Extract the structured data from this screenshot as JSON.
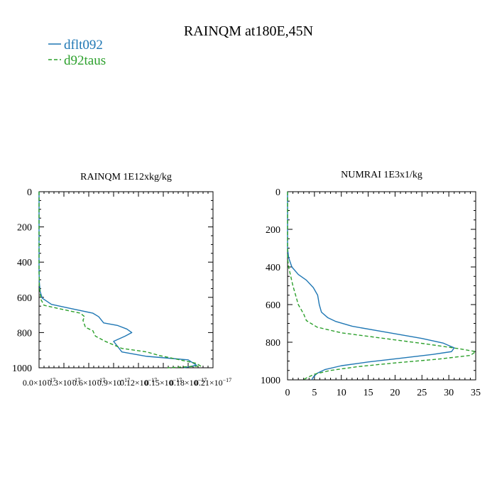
{
  "figure": {
    "title": "RAINQM at180E,45N"
  },
  "legend": [
    {
      "name": "dflt092",
      "color": "#1f77b4",
      "dash": "solid"
    },
    {
      "name": "d92taus",
      "color": "#2ca02c",
      "dash": "dashed"
    }
  ],
  "chart_data": [
    {
      "type": "line",
      "title": "RAINQM  1E12xkg/kg",
      "xlabel": "",
      "ylabel": "",
      "xlim": [
        0.0,
        2.1e-17
      ],
      "ylim": [
        1000,
        0
      ],
      "y_inverted": true,
      "grid": false,
      "legend_position": "top-left (figure)",
      "y_ticks": [
        0,
        200,
        400,
        600,
        800,
        1000
      ],
      "x_ticks": [
        0.0,
        3e-18,
        6e-18,
        9e-18,
        1.2e-17,
        1.5e-17,
        1.8e-17,
        2.1e-17
      ],
      "x_tick_labels": [
        "0.0×10",
        "0.3×10",
        "0.6×10",
        "0.9×10",
        "0.12×10",
        "0.15×10",
        "0.18×10",
        "0.21×10"
      ],
      "x_tick_exp": "−17",
      "series": [
        {
          "name": "dflt092",
          "color": "#1f77b4",
          "dash": "solid",
          "points": [
            [
              0.0,
              0
            ],
            [
              0.0,
              300
            ],
            [
              0.0,
              450
            ],
            [
              4e-20,
              520
            ],
            [
              1.5e-19,
              570
            ],
            [
              4e-19,
              605
            ],
            [
              1.5e-18,
              640
            ],
            [
              4e-18,
              665
            ],
            [
              6.5e-18,
              690
            ],
            [
              7.2e-18,
              710
            ],
            [
              7.8e-18,
              745
            ],
            [
              9.5e-18,
              760
            ],
            [
              1.06e-17,
              780
            ],
            [
              1.12e-17,
              800
            ],
            [
              1.04e-17,
              820
            ],
            [
              9e-18,
              850
            ],
            [
              9.5e-18,
              880
            ],
            [
              1e-17,
              910
            ],
            [
              1.3e-17,
              935
            ],
            [
              1.8e-17,
              955
            ],
            [
              1.85e-17,
              970
            ],
            [
              1.9e-17,
              985
            ],
            [
              1.75e-17,
              1000
            ]
          ]
        },
        {
          "name": "d92taus",
          "color": "#2ca02c",
          "dash": "dashed",
          "points": [
            [
              0.0,
              0
            ],
            [
              0.0,
              300
            ],
            [
              0.0,
              450
            ],
            [
              4e-20,
              540
            ],
            [
              2e-19,
              610
            ],
            [
              6e-19,
              645
            ],
            [
              2.5e-18,
              665
            ],
            [
              5e-18,
              690
            ],
            [
              5.5e-18,
              710
            ],
            [
              5.3e-18,
              730
            ],
            [
              5.6e-18,
              770
            ],
            [
              6.5e-18,
              790
            ],
            [
              6.8e-18,
              820
            ],
            [
              8e-18,
              850
            ],
            [
              9e-18,
              870
            ],
            [
              1e-17,
              890
            ],
            [
              1.3e-17,
              910
            ],
            [
              1.45e-17,
              930
            ],
            [
              1.6e-17,
              945
            ],
            [
              1.75e-17,
              960
            ],
            [
              1.9e-17,
              975
            ],
            [
              1.95e-17,
              990
            ],
            [
              1.55e-17,
              1000
            ]
          ]
        }
      ]
    },
    {
      "type": "line",
      "title": "NUMRAI  1E3x1/kg",
      "xlabel": "",
      "ylabel": "",
      "xlim": [
        0,
        35
      ],
      "ylim": [
        1000,
        0
      ],
      "y_inverted": true,
      "grid": false,
      "y_ticks": [
        0,
        200,
        400,
        600,
        800,
        1000
      ],
      "x_ticks": [
        0,
        5,
        10,
        15,
        20,
        25,
        30,
        35
      ],
      "x_tick_labels": [
        "0",
        "5",
        "10",
        "15",
        "20",
        "25",
        "30",
        "35"
      ],
      "series": [
        {
          "name": "dflt092",
          "color": "#1f77b4",
          "dash": "solid",
          "points": [
            [
              0,
              0
            ],
            [
              0,
              300
            ],
            [
              0.2,
              350
            ],
            [
              0.8,
              400
            ],
            [
              2.0,
              440
            ],
            [
              3.5,
              470
            ],
            [
              4.8,
              510
            ],
            [
              5.6,
              550
            ],
            [
              5.9,
              600
            ],
            [
              6.3,
              640
            ],
            [
              7.5,
              670
            ],
            [
              9.0,
              690
            ],
            [
              12.0,
              715
            ],
            [
              18.0,
              745
            ],
            [
              25.0,
              780
            ],
            [
              29.0,
              805
            ],
            [
              31.0,
              830
            ],
            [
              30.5,
              850
            ],
            [
              27.0,
              865
            ],
            [
              21.0,
              885
            ],
            [
              15.0,
              905
            ],
            [
              10.0,
              925
            ],
            [
              7.0,
              945
            ],
            [
              5.5,
              965
            ],
            [
              4.8,
              985
            ],
            [
              4.5,
              1000
            ]
          ]
        },
        {
          "name": "d92taus",
          "color": "#2ca02c",
          "dash": "dashed",
          "points": [
            [
              0,
              0
            ],
            [
              0,
              350
            ],
            [
              0.2,
              400
            ],
            [
              0.6,
              450
            ],
            [
              1.0,
              500
            ],
            [
              1.5,
              550
            ],
            [
              2.0,
              600
            ],
            [
              3.0,
              650
            ],
            [
              3.5,
              685
            ],
            [
              5.5,
              720
            ],
            [
              10.0,
              750
            ],
            [
              18.0,
              780
            ],
            [
              26.0,
              810
            ],
            [
              32.0,
              835
            ],
            [
              35.0,
              850
            ],
            [
              34.0,
              870
            ],
            [
              28.0,
              890
            ],
            [
              20.0,
              910
            ],
            [
              13.0,
              930
            ],
            [
              8.0,
              950
            ],
            [
              5.0,
              970
            ],
            [
              3.5,
              990
            ],
            [
              3.0,
              1000
            ]
          ]
        }
      ]
    }
  ]
}
